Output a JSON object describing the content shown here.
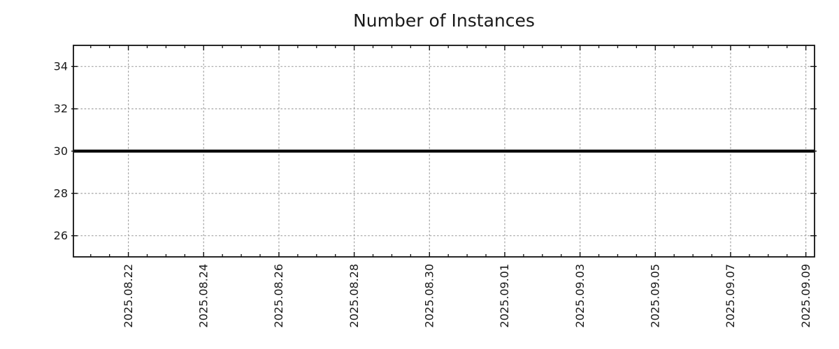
{
  "chart_data": {
    "type": "line",
    "title": "Number of Instances",
    "xlabel": "",
    "ylabel": "",
    "legend": "none",
    "grid": "dotted",
    "x_axis": {
      "tick_labels": [
        "2025.08.22",
        "2025.08.24",
        "2025.08.26",
        "2025.08.28",
        "2025.08.30",
        "2025.09.01",
        "2025.09.03",
        "2025.09.05",
        "2025.09.07",
        "2025.09.09"
      ],
      "tick_positions_days": [
        0,
        2,
        4,
        6,
        8,
        10,
        12,
        14,
        16,
        18
      ],
      "minor_tick_step_days": 0.5,
      "range_days": [
        -1.46,
        18.23
      ],
      "label_rotation_deg": -90
    },
    "y_axis": {
      "tick_labels": [
        "26",
        "28",
        "30",
        "32",
        "34"
      ],
      "tick_values": [
        26,
        28,
        30,
        32,
        34
      ],
      "range": [
        25,
        35
      ]
    },
    "series": [
      {
        "name": "Number of Instances",
        "style": "constant-line",
        "value": 30,
        "x_start_days": -1.46,
        "x_end_days": 18.23,
        "color": "#000000",
        "line_width": 4.2
      }
    ],
    "colors": {
      "background": "#ffffff",
      "grid": "#a3a3a3",
      "border": "#111111",
      "tick": "#111111",
      "text": "#1a1a1a",
      "line": "#000000"
    }
  }
}
